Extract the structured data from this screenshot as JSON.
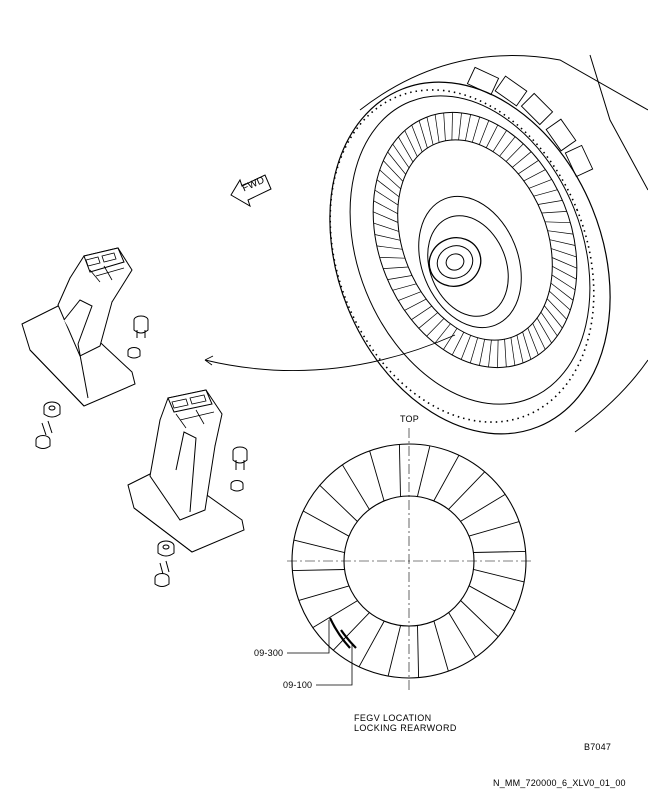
{
  "labels": {
    "fwd": "FWD",
    "top": "TOP",
    "callout_a": "09-300",
    "callout_b": "09-100",
    "note_line1": "FEGV LOCATION",
    "note_line2": "LOCKING REARWORD",
    "figure_id": "B7047",
    "sheet_ref": "N_MM_720000_6_XLV0_01_00"
  },
  "diagram": {
    "ring_vane_count": 24,
    "line_color": "#000000",
    "background": "#ffffff"
  }
}
